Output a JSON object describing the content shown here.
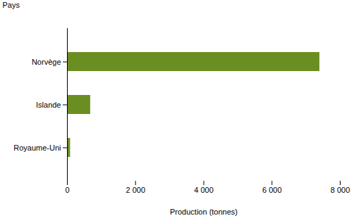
{
  "chart_data": {
    "type": "bar",
    "orientation": "horizontal",
    "categories": [
      "Royaume-Uni",
      "Islande",
      "Norvège"
    ],
    "values": [
      90,
      680,
      7400
    ],
    "color": "#6b8e23",
    "xlabel": "Production (tonnes)",
    "ylabel": "Pays",
    "xlim": [
      0,
      8000
    ],
    "xticks": [
      0,
      {
        "value": 2000,
        "label": "2 000"
      },
      {
        "value": 4000,
        "label": "4 000"
      },
      {
        "value": 6000,
        "label": "6 000"
      },
      {
        "value": 8000,
        "label": "8 000"
      }
    ],
    "grid": false
  }
}
